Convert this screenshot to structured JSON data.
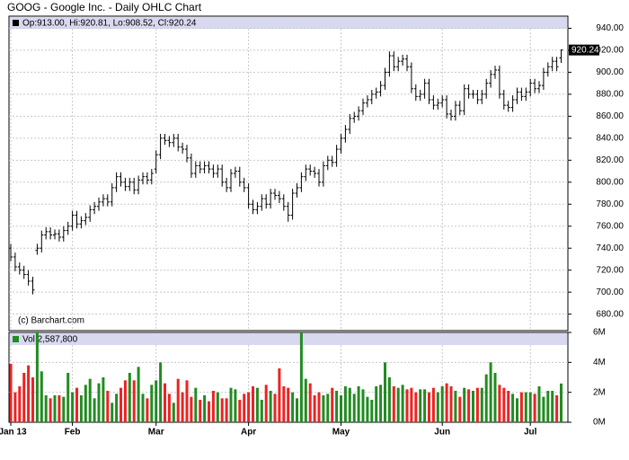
{
  "chart_data": {
    "type": "ohlc",
    "title": "GOOG - Google Inc. - Daily OHLC Chart",
    "legend_text": "Op:913.00, Hi:920.81, Lo:908.52, Cl:920.24",
    "copyright": "(c) Barchart.com",
    "volume_legend": "Vol 2,587,800",
    "grid": true,
    "up_color": "#228b22",
    "down_color": "#ee2222",
    "bar_color": "#000000",
    "xticks": [
      {
        "value": 0,
        "label": "Jan 13"
      },
      {
        "value": 14,
        "label": "Feb"
      },
      {
        "value": 33,
        "label": "Mar"
      },
      {
        "value": 54,
        "label": "Apr"
      },
      {
        "value": 75,
        "label": "May"
      },
      {
        "value": 98,
        "label": "Jun"
      },
      {
        "value": 118,
        "label": "Jul"
      }
    ],
    "ylim": [
      665,
      951
    ],
    "yticks": [
      {
        "value": 680,
        "label": "680.00"
      },
      {
        "value": 700,
        "label": "700.00"
      },
      {
        "value": 720,
        "label": "720.00"
      },
      {
        "value": 740,
        "label": "740.00"
      },
      {
        "value": 760,
        "label": "760.00"
      },
      {
        "value": 780,
        "label": "780.00"
      },
      {
        "value": 800,
        "label": "800.00"
      },
      {
        "value": 820,
        "label": "820.00"
      },
      {
        "value": 840,
        "label": "840.00"
      },
      {
        "value": 860,
        "label": "860.00"
      },
      {
        "value": 880,
        "label": "880.00"
      },
      {
        "value": 900,
        "label": "900.00"
      },
      {
        "value": 920,
        "label": "920.00"
      },
      {
        "value": 940,
        "label": "940.00"
      }
    ],
    "open": [
      740,
      732,
      723,
      720,
      716,
      710,
      738,
      740,
      752,
      755,
      752,
      753,
      750,
      756,
      760,
      770,
      762,
      765,
      768,
      775,
      778,
      782,
      785,
      782,
      795,
      805,
      800,
      796,
      800,
      793,
      802,
      805,
      802,
      812,
      825,
      840,
      838,
      836,
      840,
      832,
      830,
      822,
      808,
      815,
      812,
      815,
      812,
      808,
      812,
      800,
      795,
      808,
      810,
      800,
      795,
      780,
      775,
      778,
      785,
      780,
      790,
      788,
      785,
      778,
      770,
      790,
      795,
      805,
      812,
      810,
      808,
      800,
      815,
      820,
      818,
      830,
      840,
      848,
      858,
      860,
      865,
      872,
      875,
      880,
      882,
      888,
      900,
      915,
      905,
      910,
      912,
      905,
      885,
      878,
      880,
      890,
      875,
      870,
      872,
      875,
      862,
      860,
      870,
      865,
      885,
      880,
      880,
      875,
      880,
      890,
      898,
      902,
      880,
      870,
      868,
      875,
      882,
      878,
      882,
      890,
      885,
      888,
      900,
      905,
      910,
      913
    ],
    "high": [
      744,
      736,
      727,
      724,
      720,
      714,
      744,
      756,
      759,
      759,
      757,
      757,
      760,
      764,
      774,
      774,
      769,
      772,
      779,
      782,
      786,
      789,
      789,
      799,
      809,
      809,
      804,
      804,
      804,
      806,
      809,
      809,
      812,
      829,
      844,
      844,
      842,
      844,
      844,
      836,
      834,
      826,
      819,
      819,
      819,
      819,
      816,
      816,
      816,
      804,
      812,
      814,
      814,
      804,
      799,
      784,
      782,
      789,
      789,
      794,
      794,
      792,
      789,
      782,
      794,
      799,
      809,
      816,
      816,
      814,
      812,
      819,
      824,
      824,
      834,
      844,
      852,
      862,
      864,
      869,
      876,
      879,
      884,
      886,
      892,
      904,
      919,
      919,
      914,
      916,
      916,
      909,
      889,
      884,
      894,
      894,
      879,
      876,
      879,
      879,
      866,
      874,
      874,
      889,
      889,
      884,
      884,
      884,
      894,
      902,
      906,
      906,
      884,
      874,
      879,
      886,
      886,
      886,
      894,
      894,
      892,
      904,
      909,
      914,
      914,
      920.81
    ],
    "low": [
      728,
      719,
      716,
      712,
      706,
      698,
      734,
      736,
      748,
      748,
      748,
      746,
      746,
      752,
      756,
      758,
      758,
      761,
      764,
      771,
      774,
      778,
      778,
      778,
      791,
      796,
      792,
      792,
      789,
      789,
      798,
      798,
      798,
      808,
      821,
      834,
      832,
      832,
      828,
      826,
      818,
      804,
      804,
      808,
      808,
      808,
      804,
      804,
      796,
      791,
      791,
      804,
      796,
      791,
      776,
      771,
      771,
      774,
      776,
      776,
      784,
      781,
      774,
      764,
      766,
      786,
      791,
      801,
      806,
      804,
      796,
      796,
      811,
      814,
      814,
      826,
      836,
      844,
      854,
      856,
      861,
      868,
      871,
      876,
      878,
      884,
      896,
      901,
      901,
      906,
      901,
      881,
      874,
      874,
      876,
      871,
      866,
      866,
      868,
      858,
      856,
      856,
      861,
      861,
      876,
      876,
      871,
      871,
      876,
      886,
      894,
      876,
      866,
      864,
      864,
      871,
      874,
      874,
      878,
      881,
      881,
      884,
      896,
      901,
      901,
      908.52
    ],
    "close": [
      732,
      723,
      720,
      716,
      710,
      702,
      740,
      752,
      755,
      752,
      753,
      750,
      756,
      760,
      770,
      762,
      765,
      768,
      775,
      778,
      782,
      785,
      782,
      795,
      805,
      800,
      796,
      800,
      793,
      802,
      805,
      802,
      808,
      825,
      840,
      838,
      836,
      840,
      832,
      830,
      822,
      808,
      815,
      812,
      815,
      812,
      808,
      812,
      800,
      795,
      808,
      810,
      800,
      795,
      780,
      775,
      778,
      785,
      780,
      790,
      788,
      785,
      778,
      770,
      790,
      795,
      805,
      812,
      810,
      808,
      800,
      815,
      820,
      818,
      830,
      840,
      848,
      858,
      860,
      865,
      872,
      875,
      880,
      882,
      888,
      900,
      915,
      905,
      910,
      912,
      905,
      885,
      878,
      880,
      890,
      875,
      870,
      872,
      875,
      862,
      860,
      870,
      865,
      885,
      880,
      880,
      875,
      880,
      890,
      898,
      902,
      880,
      870,
      868,
      875,
      882,
      878,
      882,
      890,
      885,
      888,
      900,
      905,
      910,
      905,
      920.24
    ],
    "volume_ylim": [
      0,
      6000000
    ],
    "volume_yticks": [
      {
        "value": 0,
        "label": "0M"
      },
      {
        "value": 2000000,
        "label": "2M"
      },
      {
        "value": 4000000,
        "label": "4M"
      },
      {
        "value": 6000000,
        "label": "6M"
      }
    ],
    "volume": [
      3900000,
      2000000,
      2400000,
      3300000,
      3800000,
      3000000,
      6000000,
      3400000,
      1800000,
      1600000,
      1800000,
      1800000,
      1700000,
      3300000,
      2000000,
      2300000,
      1800000,
      2500000,
      2900000,
      1600000,
      2600000,
      3000000,
      2100000,
      1300000,
      1900000,
      2300000,
      2800000,
      3300000,
      2800000,
      3700000,
      1900000,
      1600000,
      2500000,
      2800000,
      4000000,
      2600000,
      1900000,
      1300000,
      2900000,
      2000000,
      2800000,
      1700000,
      2300000,
      1500000,
      1800000,
      1400000,
      2100000,
      2000000,
      1600000,
      1600000,
      2300000,
      2200000,
      1500000,
      1900000,
      2000000,
      2400000,
      2300000,
      1500000,
      2500000,
      2100000,
      1900000,
      3600000,
      2400000,
      2300000,
      2000000,
      1600000,
      6000000,
      2900000,
      2600000,
      1800000,
      2000000,
      1800000,
      1900000,
      2300000,
      2100000,
      1800000,
      2400000,
      2300000,
      1900000,
      2400000,
      2200000,
      1700000,
      1500000,
      2400000,
      2500000,
      4000000,
      3000000,
      2400000,
      2300000,
      2500000,
      2200000,
      2300000,
      2000000,
      2200000,
      2200000,
      2000000,
      2300000,
      2000000,
      2400000,
      2600000,
      2400000,
      2100000,
      1700000,
      2300000,
      2200000,
      2100000,
      2300000,
      2300000,
      3200000,
      4000000,
      3300000,
      2500000,
      2300000,
      2100000,
      1900000,
      1600000,
      2000000,
      2000000,
      2000000,
      1900000,
      2400000,
      1700000,
      2100000,
      2100000,
      1800000,
      2587800
    ]
  }
}
